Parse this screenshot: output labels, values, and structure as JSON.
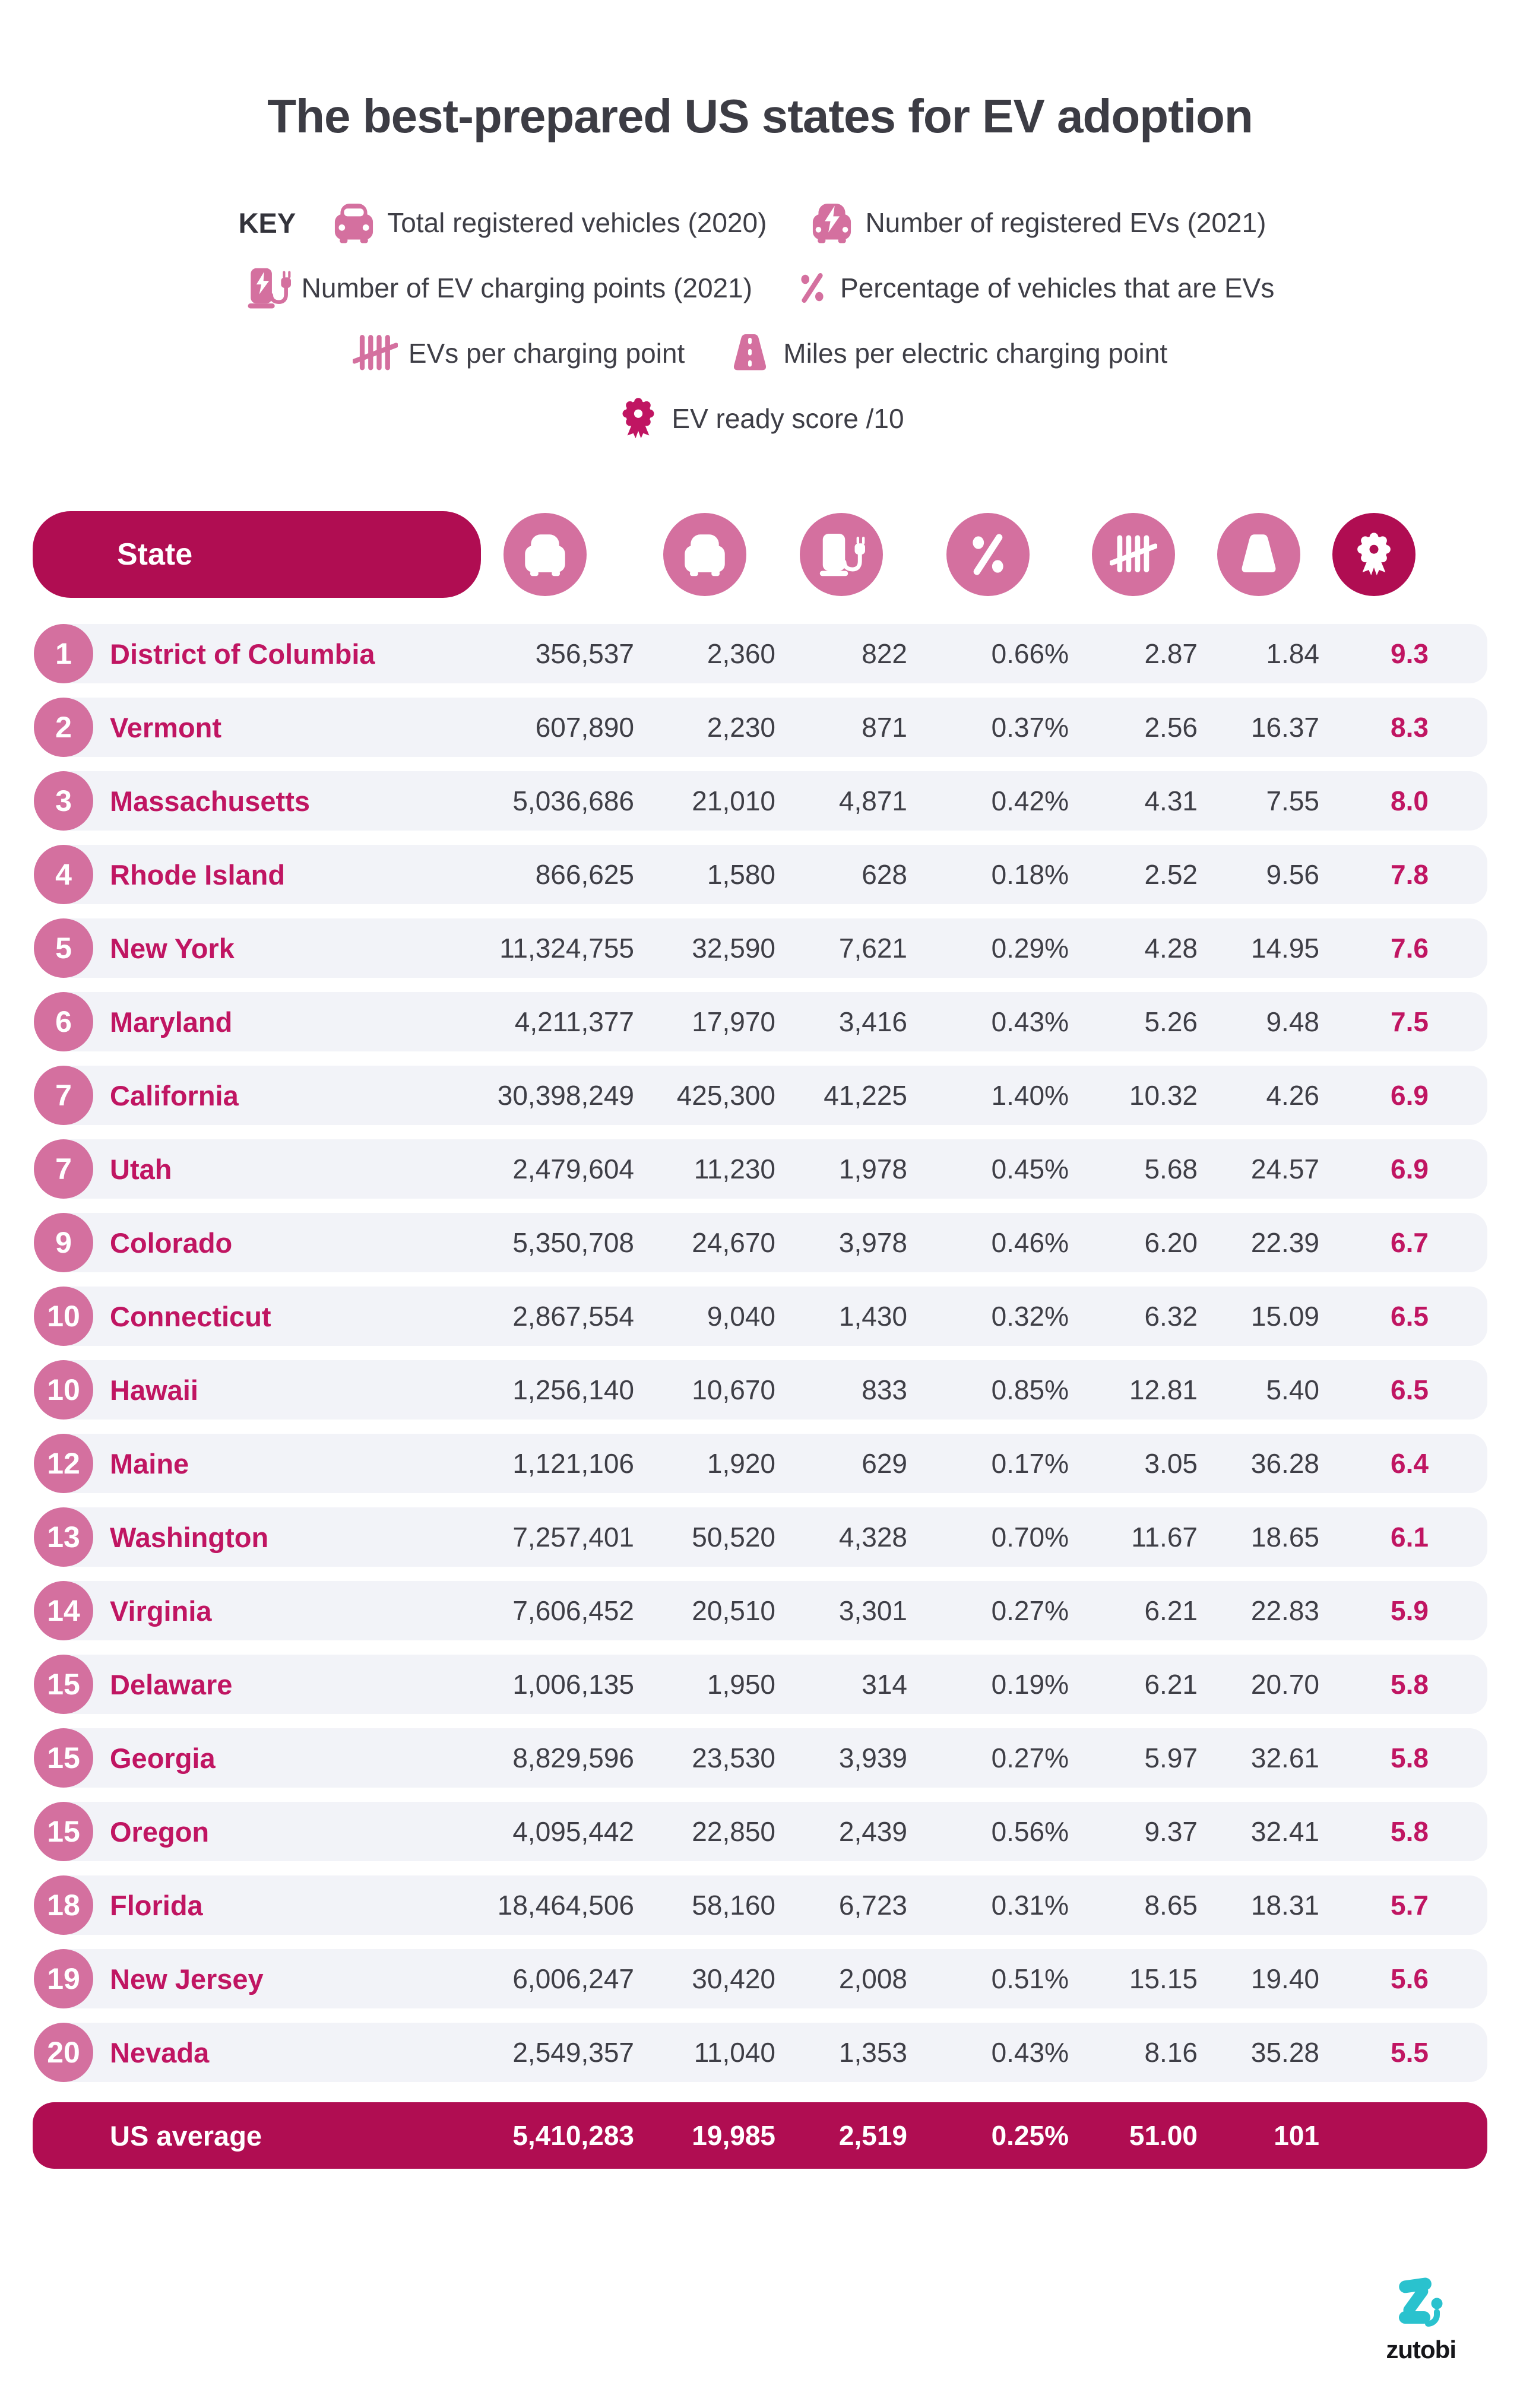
{
  "title": "The best-prepared US states for EV adoption",
  "key": {
    "label": "KEY",
    "items": [
      {
        "icon": "car-icon",
        "label": "Total registered vehicles (2020)"
      },
      {
        "icon": "ev-car-icon",
        "label": "Number of registered EVs (2021)"
      },
      {
        "icon": "charging-point-icon",
        "label": "Number of EV charging points (2021)"
      },
      {
        "icon": "percent-icon",
        "label": "Percentage of vehicles that are EVs"
      },
      {
        "icon": "tally-icon",
        "label": "EVs per charging point"
      },
      {
        "icon": "road-icon",
        "label": "Miles per electric charging point"
      },
      {
        "icon": "award-icon",
        "label": "EV ready score /10"
      }
    ]
  },
  "chart_data": {
    "type": "table",
    "title": "The best-prepared US states for EV adoption",
    "columns": [
      "State",
      "Total registered vehicles (2020)",
      "Number of registered EVs (2021)",
      "Number of EV charging points (2021)",
      "Percentage of vehicles that are EVs",
      "EVs per charging point",
      "Miles per electric charging point",
      "EV ready score /10"
    ],
    "rows_note": "see table.rows below; identical data"
  },
  "table": {
    "state_header": "State",
    "column_icons": [
      "car-icon",
      "ev-car-icon",
      "charging-point-icon",
      "percent-icon",
      "tally-icon",
      "road-icon",
      "award-icon"
    ],
    "rows": [
      {
        "rank": "1",
        "state": "District of Columbia",
        "values": [
          "356,537",
          "2,360",
          "822",
          "0.66%",
          "2.87",
          "1.84"
        ],
        "score": "9.3"
      },
      {
        "rank": "2",
        "state": "Vermont",
        "values": [
          "607,890",
          "2,230",
          "871",
          "0.37%",
          "2.56",
          "16.37"
        ],
        "score": "8.3"
      },
      {
        "rank": "3",
        "state": "Massachusetts",
        "values": [
          "5,036,686",
          "21,010",
          "4,871",
          "0.42%",
          "4.31",
          "7.55"
        ],
        "score": "8.0"
      },
      {
        "rank": "4",
        "state": "Rhode Island",
        "values": [
          "866,625",
          "1,580",
          "628",
          "0.18%",
          "2.52",
          "9.56"
        ],
        "score": "7.8"
      },
      {
        "rank": "5",
        "state": "New York",
        "values": [
          "11,324,755",
          "32,590",
          "7,621",
          "0.29%",
          "4.28",
          "14.95"
        ],
        "score": "7.6"
      },
      {
        "rank": "6",
        "state": "Maryland",
        "values": [
          "4,211,377",
          "17,970",
          "3,416",
          "0.43%",
          "5.26",
          "9.48"
        ],
        "score": "7.5"
      },
      {
        "rank": "7",
        "state": "California",
        "values": [
          "30,398,249",
          "425,300",
          "41,225",
          "1.40%",
          "10.32",
          "4.26"
        ],
        "score": "6.9"
      },
      {
        "rank": "7",
        "state": "Utah",
        "values": [
          "2,479,604",
          "11,230",
          "1,978",
          "0.45%",
          "5.68",
          "24.57"
        ],
        "score": "6.9"
      },
      {
        "rank": "9",
        "state": "Colorado",
        "values": [
          "5,350,708",
          "24,670",
          "3,978",
          "0.46%",
          "6.20",
          "22.39"
        ],
        "score": "6.7"
      },
      {
        "rank": "10",
        "state": "Connecticut",
        "values": [
          "2,867,554",
          "9,040",
          "1,430",
          "0.32%",
          "6.32",
          "15.09"
        ],
        "score": "6.5"
      },
      {
        "rank": "10",
        "state": "Hawaii",
        "values": [
          "1,256,140",
          "10,670",
          "833",
          "0.85%",
          "12.81",
          "5.40"
        ],
        "score": "6.5"
      },
      {
        "rank": "12",
        "state": "Maine",
        "values": [
          "1,121,106",
          "1,920",
          "629",
          "0.17%",
          "3.05",
          "36.28"
        ],
        "score": "6.4"
      },
      {
        "rank": "13",
        "state": "Washington",
        "values": [
          "7,257,401",
          "50,520",
          "4,328",
          "0.70%",
          "11.67",
          "18.65"
        ],
        "score": "6.1"
      },
      {
        "rank": "14",
        "state": "Virginia",
        "values": [
          "7,606,452",
          "20,510",
          "3,301",
          "0.27%",
          "6.21",
          "22.83"
        ],
        "score": "5.9"
      },
      {
        "rank": "15",
        "state": "Delaware",
        "values": [
          "1,006,135",
          "1,950",
          "314",
          "0.19%",
          "6.21",
          "20.70"
        ],
        "score": "5.8"
      },
      {
        "rank": "15",
        "state": "Georgia",
        "values": [
          "8,829,596",
          "23,530",
          "3,939",
          "0.27%",
          "5.97",
          "32.61"
        ],
        "score": "5.8"
      },
      {
        "rank": "15",
        "state": "Oregon",
        "values": [
          "4,095,442",
          "22,850",
          "2,439",
          "0.56%",
          "9.37",
          "32.41"
        ],
        "score": "5.8"
      },
      {
        "rank": "18",
        "state": "Florida",
        "values": [
          "18,464,506",
          "58,160",
          "6,723",
          "0.31%",
          "8.65",
          "18.31"
        ],
        "score": "5.7"
      },
      {
        "rank": "19",
        "state": "New Jersey",
        "values": [
          "6,006,247",
          "30,420",
          "2,008",
          "0.51%",
          "15.15",
          "19.40"
        ],
        "score": "5.6"
      },
      {
        "rank": "20",
        "state": "Nevada",
        "values": [
          "2,549,357",
          "11,040",
          "1,353",
          "0.43%",
          "8.16",
          "35.28"
        ],
        "score": "5.5"
      }
    ],
    "average": {
      "label": "US average",
      "values": [
        "5,410,283",
        "19,985",
        "2,519",
        "0.25%",
        "51.00",
        "101"
      ],
      "score": ""
    }
  },
  "footer": {
    "brand": "zutobi"
  },
  "colors": {
    "crimson": "#b00d52",
    "accent_text": "#c01562",
    "pink": "#d4709f",
    "row_bg": "#f2f3f8",
    "body_text": "#3e3e46",
    "brand_teal": "#2ac2ce"
  }
}
